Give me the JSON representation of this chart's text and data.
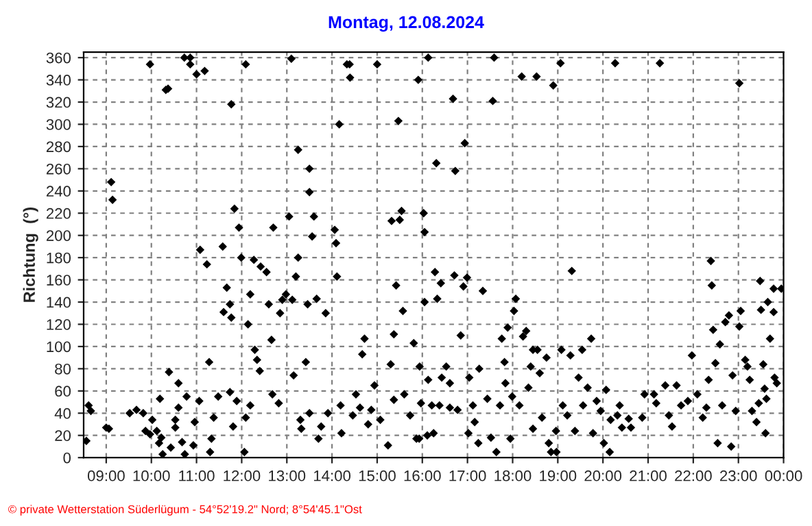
{
  "chart_data": {
    "type": "scatter",
    "title": "Montag, 12.08.2024",
    "ylabel": "Richtung  (°)",
    "annotations": [
      "© private Wetterstation Süderlügum - 54°52'19.2\" Nord; 8°54'45.1\"Ost"
    ],
    "xlim": [
      8.5,
      24.0
    ],
    "ylim": [
      0,
      365
    ],
    "xticks": [
      {
        "value": 9,
        "label": "09:00"
      },
      {
        "value": 10,
        "label": "10:00"
      },
      {
        "value": 11,
        "label": "11:00"
      },
      {
        "value": 12,
        "label": "12:00"
      },
      {
        "value": 13,
        "label": "13:00"
      },
      {
        "value": 14,
        "label": "14:00"
      },
      {
        "value": 15,
        "label": "15:00"
      },
      {
        "value": 16,
        "label": "16:00"
      },
      {
        "value": 17,
        "label": "17:00"
      },
      {
        "value": 18,
        "label": "18:00"
      },
      {
        "value": 19,
        "label": "19:00"
      },
      {
        "value": 20,
        "label": "20:00"
      },
      {
        "value": 21,
        "label": "21:00"
      },
      {
        "value": 22,
        "label": "22:00"
      },
      {
        "value": 23,
        "label": "23:00"
      },
      {
        "value": 24,
        "label": "00:00"
      }
    ],
    "yticks": [
      0,
      20,
      40,
      60,
      80,
      100,
      120,
      140,
      160,
      180,
      200,
      220,
      240,
      260,
      280,
      300,
      320,
      340,
      360
    ],
    "grid": true,
    "marker": "diamond",
    "series": [
      {
        "color": "#000000",
        "x": [
          8.56,
          8.61,
          8.66,
          9.11,
          9.14,
          9.0,
          9.06,
          9.52,
          9.67,
          9.82,
          9.87,
          10.02,
          9.97,
          9.97,
          10.12,
          10.17,
          10.22,
          10.19,
          10.25,
          10.32,
          10.37,
          10.39,
          10.43,
          10.53,
          10.53,
          10.6,
          10.6,
          10.68,
          10.73,
          10.86,
          10.86,
          10.74,
          10.78,
          10.93,
          10.96,
          11.0,
          11.06,
          11.08,
          11.18,
          11.23,
          11.28,
          11.3,
          11.33,
          11.38,
          11.48,
          11.58,
          11.6,
          11.67,
          11.74,
          11.77,
          11.74,
          11.77,
          11.81,
          11.84,
          11.89,
          11.94,
          11.99,
          12.06,
          12.09,
          12.09,
          12.14,
          12.19,
          12.19,
          12.27,
          12.29,
          12.34,
          12.4,
          12.42,
          12.55,
          12.6,
          12.66,
          12.68,
          12.7,
          12.82,
          12.85,
          12.9,
          12.98,
          13.05,
          13.1,
          13.12,
          13.15,
          13.2,
          13.25,
          13.25,
          13.3,
          13.32,
          13.42,
          13.46,
          13.5,
          13.5,
          13.5,
          13.56,
          13.6,
          13.66,
          13.7,
          13.76,
          13.86,
          13.91,
          14.06,
          14.09,
          14.11,
          14.16,
          14.19,
          14.21,
          14.33,
          14.39,
          14.4,
          14.46,
          14.53,
          14.62,
          14.67,
          14.72,
          14.8,
          14.87,
          14.94,
          15.0,
          15.07,
          15.24,
          15.3,
          15.32,
          15.37,
          15.37,
          15.42,
          15.47,
          15.5,
          15.54,
          15.57,
          15.6,
          15.73,
          15.81,
          15.91,
          15.93,
          15.94,
          15.97,
          16.13,
          15.87,
          16.03,
          16.05,
          16.05,
          16.11,
          16.13,
          16.21,
          16.25,
          16.28,
          16.31,
          16.33,
          16.38,
          16.41,
          16.43,
          16.53,
          16.61,
          16.61,
          16.68,
          16.71,
          16.73,
          16.78,
          16.85,
          16.91,
          16.94,
          16.99,
          17.02,
          17.04,
          17.12,
          17.16,
          17.24,
          17.26,
          17.34,
          17.44,
          17.52,
          17.56,
          17.59,
          17.64,
          17.72,
          17.76,
          17.82,
          17.84,
          17.89,
          17.95,
          17.99,
          18.03,
          18.07,
          18.15,
          18.2,
          18.23,
          18.3,
          18.35,
          18.4,
          18.45,
          18.55,
          18.45,
          18.53,
          18.6,
          18.65,
          18.75,
          18.8,
          18.85,
          18.97,
          18.9,
          18.96,
          19.06,
          19.08,
          19.11,
          19.21,
          19.28,
          19.31,
          19.38,
          19.46,
          19.54,
          19.56,
          19.66,
          19.74,
          19.78,
          19.86,
          19.95,
          20.02,
          20.07,
          20.15,
          20.17,
          20.27,
          20.32,
          20.37,
          20.42,
          20.57,
          20.87,
          20.62,
          20.92,
          21.13,
          21.18,
          21.26,
          21.38,
          21.46,
          21.53,
          21.63,
          21.73,
          21.88,
          21.97,
          22.09,
          22.21,
          22.29,
          22.34,
          22.39,
          22.41,
          22.44,
          22.49,
          22.54,
          22.59,
          22.64,
          22.71,
          22.79,
          22.84,
          22.87,
          22.94,
          23.02,
          23.02,
          23.05,
          23.15,
          23.2,
          23.25,
          23.3,
          23.4,
          23.45,
          23.48,
          23.5,
          23.55,
          23.58,
          23.6,
          23.62,
          23.65,
          23.7,
          23.78,
          23.8,
          23.85,
          23.78,
          23.95
        ],
        "values": [
          15,
          47,
          42,
          248,
          232,
          27,
          26,
          40,
          43,
          40,
          24,
          34,
          21,
          354,
          24,
          13,
          18,
          53,
          3,
          331,
          332,
          77,
          9,
          27,
          34,
          67,
          45,
          14,
          360,
          360,
          354,
          3,
          55,
          11,
          32,
          345,
          51,
          187,
          348,
          174,
          86,
          5,
          17,
          36,
          55,
          190,
          131,
          153,
          138,
          126,
          59,
          318,
          28,
          224,
          51,
          207,
          180,
          5,
          354,
          36,
          120,
          147,
          47,
          178,
          97,
          88,
          78,
          172,
          167,
          138,
          106,
          57,
          207,
          49,
          130,
          142,
          147,
          217,
          359,
          142,
          74,
          163,
          180,
          277,
          34,
          26,
          86,
          138,
          260,
          239,
          40,
          199,
          217,
          143,
          17,
          28,
          130,
          40,
          205,
          193,
          163,
          300,
          47,
          22,
          354,
          354,
          342,
          38,
          57,
          45,
          93,
          107,
          30,
          43,
          65,
          354,
          34,
          11,
          84,
          213,
          52,
          111,
          155,
          303,
          214,
          222,
          132,
          57,
          38,
          103,
          340,
          17,
          82,
          49,
          360,
          17,
          220,
          203,
          140,
          20,
          70,
          47,
          22,
          167,
          265,
          143,
          47,
          157,
          72,
          82,
          67,
          45,
          323,
          164,
          258,
          43,
          110,
          154,
          283,
          162,
          22,
          72,
          47,
          32,
          13,
          80,
          150,
          53,
          18,
          321,
          360,
          5,
          47,
          107,
          86,
          67,
          117,
          17,
          55,
          132,
          143,
          47,
          343,
          109,
          114,
          63,
          82,
          97,
          97,
          26,
          343,
          76,
          36,
          90,
          13,
          5,
          5,
          335,
          24,
          355,
          97,
          47,
          38,
          92,
          168,
          24,
          72,
          97,
          47,
          63,
          107,
          22,
          51,
          42,
          13,
          61,
          5,
          34,
          355,
          38,
          47,
          27,
          35,
          36,
          27,
          57,
          57,
          49,
          355,
          65,
          38,
          28,
          65,
          47,
          51,
          92,
          57,
          36,
          45,
          70,
          177,
          155,
          115,
          85,
          13,
          102,
          47,
          122,
          128,
          10,
          74,
          42,
          337,
          118,
          132,
          88,
          82,
          70,
          42,
          32,
          49,
          159,
          133,
          84,
          62,
          22,
          53,
          140,
          107,
          131,
          72,
          67,
          152,
          152
        ]
      }
    ]
  }
}
